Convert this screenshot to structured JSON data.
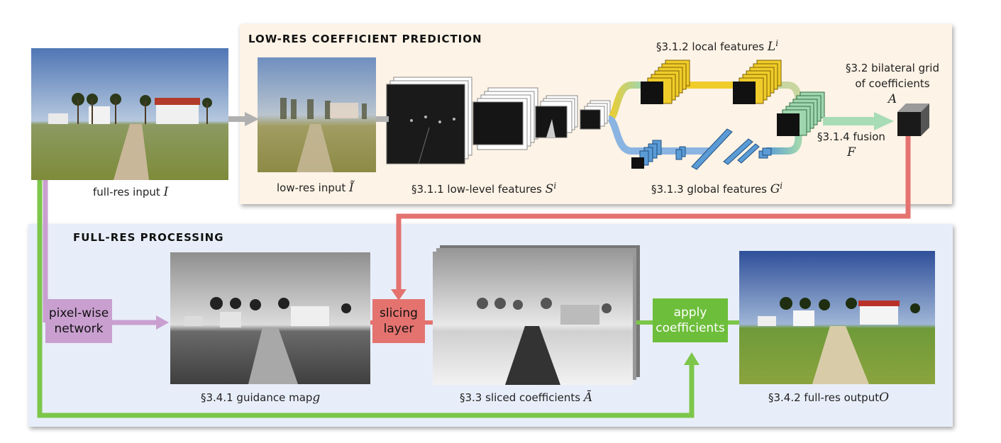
{
  "sections": {
    "top_title": "LOW-RES COEFFICIENT PREDICTION",
    "bottom_title": "FULL-RES PROCESSING"
  },
  "captions": {
    "full_res_input": "full-res input",
    "full_res_input_sym": "I",
    "low_res_input": "low-res input",
    "low_res_input_sym": "Ĩ",
    "low_level": "§3.1.1 low-level features",
    "low_level_sym": "S",
    "low_level_sup": "i",
    "local": "§3.1.2 local features",
    "local_sym": "L",
    "local_sup": "i",
    "global": "§3.1.3 global features",
    "global_sym": "G",
    "global_sup": "i",
    "grid_line1": "§3.2 bilateral grid",
    "grid_line2": "of coefficients",
    "grid_sym": "A",
    "fusion": "§3.1.4 fusion",
    "fusion_sym": "F",
    "guidance": "§3.4.1 guidance map",
    "guidance_sym": "g",
    "sliced": "§3.3 sliced coefficients",
    "sliced_sym": "Ā",
    "output": "§3.4.2 full-res output",
    "output_sym": "O"
  },
  "boxes": {
    "pixelwise_line1": "pixel-wise",
    "pixelwise_line2": "network",
    "slicing_line1": "slicing",
    "slicing_line2": "layer",
    "apply_line1": "apply",
    "apply_line2": "coefficients"
  },
  "colors": {
    "top_panel": "#fdf3e6",
    "bottom_panel": "#e8eef9",
    "purple": "#c99fd0",
    "red": "#e4736f",
    "green": "#6dbe3a",
    "gray_arrow": "#b0b0b0",
    "local_blocks": "#f0cc2a",
    "global_blocks": "#5b9bd6",
    "fusion_blocks": "#9fd6b0"
  }
}
